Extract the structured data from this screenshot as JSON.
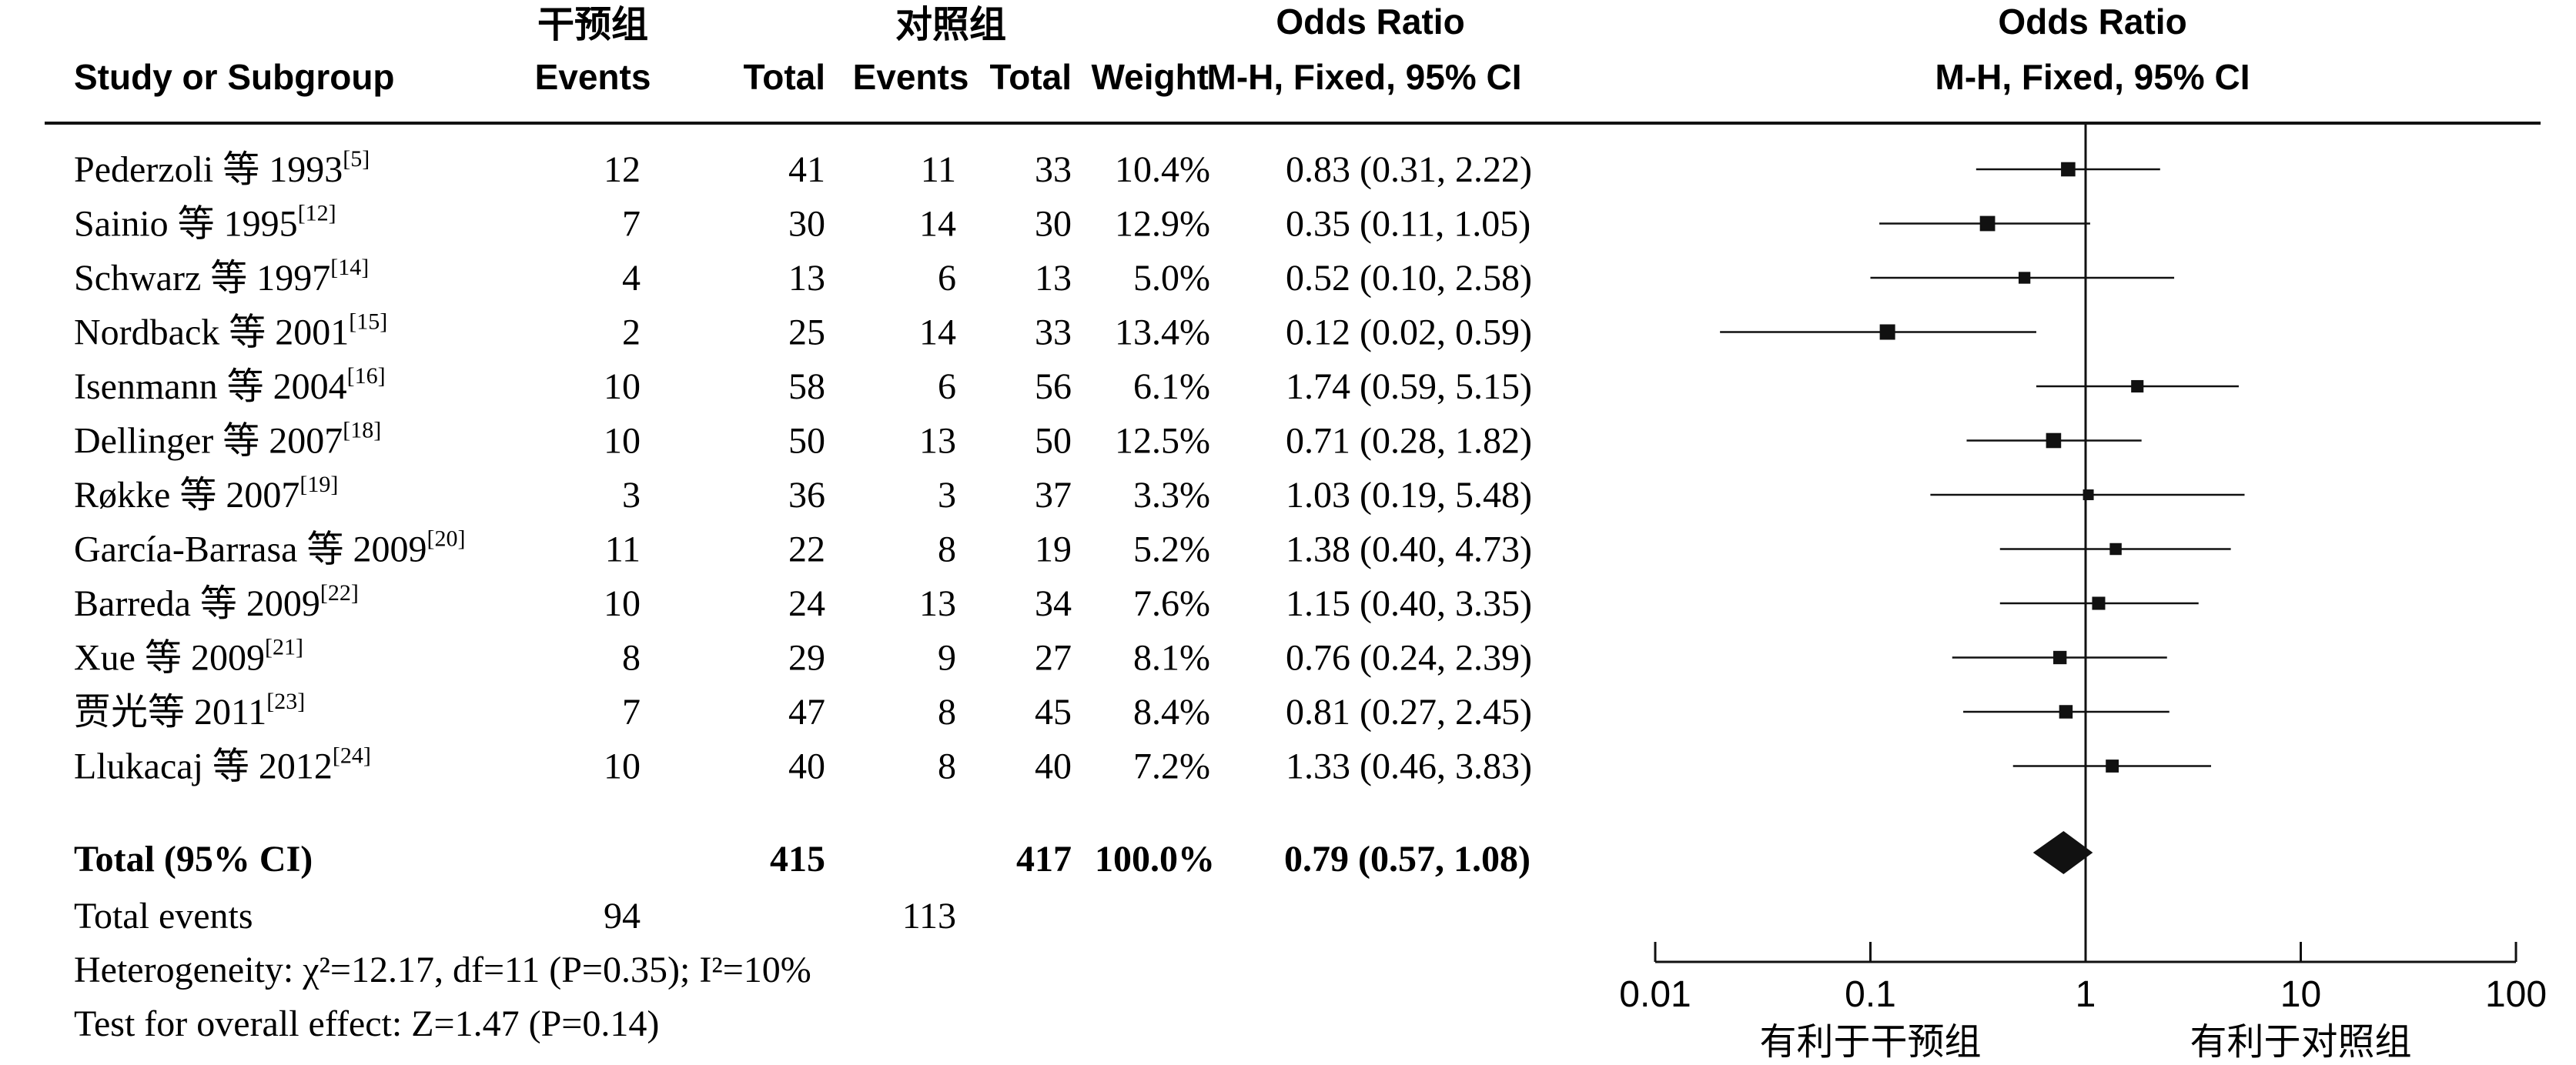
{
  "header": {
    "group1_label": "干预组",
    "group2_label": "对照组",
    "or_title": "Odds Ratio",
    "or_title_plot": "Odds Ratio",
    "col_study": "Study or Subgroup",
    "col_events1": "Events",
    "col_total1": "Total",
    "col_events2": "Events",
    "col_total2": "Total",
    "col_weight": "Weight",
    "col_or": "M-H, Fixed, 95% CI",
    "col_or_plot": "M-H, Fixed, 95% CI"
  },
  "summary": {
    "total_label": "Total (95% CI)",
    "total1": "415",
    "total2": "417",
    "weight": "100.0%",
    "or_text": "0.79 (0.57, 1.08)",
    "events_label": "Total events",
    "events1": "94",
    "events2": "113",
    "heterogeneity": "Heterogeneity: χ²=12.17, df=11 (P=0.35); I²=10%",
    "overall": "Test for overall effect: Z=1.47 (P=0.14)"
  },
  "chart_data": {
    "type": "forest",
    "x_scale": "log",
    "xlim": [
      0.01,
      100
    ],
    "x_ticks": [
      "0.01",
      "0.1",
      "1",
      "10",
      "100"
    ],
    "favours_left": "有利于干预组",
    "favours_right": "有利于对照组",
    "studies": [
      {
        "name": "Pederzoli 等 1993",
        "ref": "[5]",
        "events1": 12,
        "total1": 41,
        "events2": 11,
        "total2": 33,
        "weight": "10.4%",
        "or": 0.83,
        "lo": 0.31,
        "hi": 2.22,
        "or_text": "0.83 (0.31, 2.22)"
      },
      {
        "name": "Sainio 等 1995",
        "ref": "[12]",
        "events1": 7,
        "total1": 30,
        "events2": 14,
        "total2": 30,
        "weight": "12.9%",
        "or": 0.35,
        "lo": 0.11,
        "hi": 1.05,
        "or_text": "0.35 (0.11, 1.05)"
      },
      {
        "name": "Schwarz 等 1997",
        "ref": "[14]",
        "events1": 4,
        "total1": 13,
        "events2": 6,
        "total2": 13,
        "weight": "5.0%",
        "or": 0.52,
        "lo": 0.1,
        "hi": 2.58,
        "or_text": "0.52 (0.10, 2.58)"
      },
      {
        "name": "Nordback 等 2001",
        "ref": "[15]",
        "events1": 2,
        "total1": 25,
        "events2": 14,
        "total2": 33,
        "weight": "13.4%",
        "or": 0.12,
        "lo": 0.02,
        "hi": 0.59,
        "or_text": "0.12 (0.02, 0.59)"
      },
      {
        "name": "Isenmann 等 2004",
        "ref": "[16]",
        "events1": 10,
        "total1": 58,
        "events2": 6,
        "total2": 56,
        "weight": "6.1%",
        "or": 1.74,
        "lo": 0.59,
        "hi": 5.15,
        "or_text": "1.74 (0.59, 5.15)"
      },
      {
        "name": "Dellinger 等 2007",
        "ref": "[18]",
        "events1": 10,
        "total1": 50,
        "events2": 13,
        "total2": 50,
        "weight": "12.5%",
        "or": 0.71,
        "lo": 0.28,
        "hi": 1.82,
        "or_text": "0.71 (0.28, 1.82)"
      },
      {
        "name": "Røkke 等 2007",
        "ref": "[19]",
        "events1": 3,
        "total1": 36,
        "events2": 3,
        "total2": 37,
        "weight": "3.3%",
        "or": 1.03,
        "lo": 0.19,
        "hi": 5.48,
        "or_text": "1.03 (0.19, 5.48)"
      },
      {
        "name": "García-Barrasa 等 2009",
        "ref": "[20]",
        "events1": 11,
        "total1": 22,
        "events2": 8,
        "total2": 19,
        "weight": "5.2%",
        "or": 1.38,
        "lo": 0.4,
        "hi": 4.73,
        "or_text": "1.38 (0.40, 4.73)"
      },
      {
        "name": "Barreda 等 2009",
        "ref": "[22]",
        "events1": 10,
        "total1": 24,
        "events2": 13,
        "total2": 34,
        "weight": "7.6%",
        "or": 1.15,
        "lo": 0.4,
        "hi": 3.35,
        "or_text": "1.15 (0.40, 3.35)"
      },
      {
        "name": "Xue 等 2009",
        "ref": "[21]",
        "events1": 8,
        "total1": 29,
        "events2": 9,
        "total2": 27,
        "weight": "8.1%",
        "or": 0.76,
        "lo": 0.24,
        "hi": 2.39,
        "or_text": "0.76 (0.24, 2.39)"
      },
      {
        "name": "贾光等 2011",
        "ref": "[23]",
        "events1": 7,
        "total1": 47,
        "events2": 8,
        "total2": 45,
        "weight": "8.4%",
        "or": 0.81,
        "lo": 0.27,
        "hi": 2.45,
        "or_text": "0.81 (0.27, 2.45)"
      },
      {
        "name": "Llukacaj 等 2012",
        "ref": "[24]",
        "events1": 10,
        "total1": 40,
        "events2": 8,
        "total2": 40,
        "weight": "7.2%",
        "or": 1.33,
        "lo": 0.46,
        "hi": 3.83,
        "or_text": "1.33 (0.46, 3.83)"
      }
    ],
    "pooled": {
      "or": 0.79,
      "lo": 0.57,
      "hi": 1.08
    }
  }
}
